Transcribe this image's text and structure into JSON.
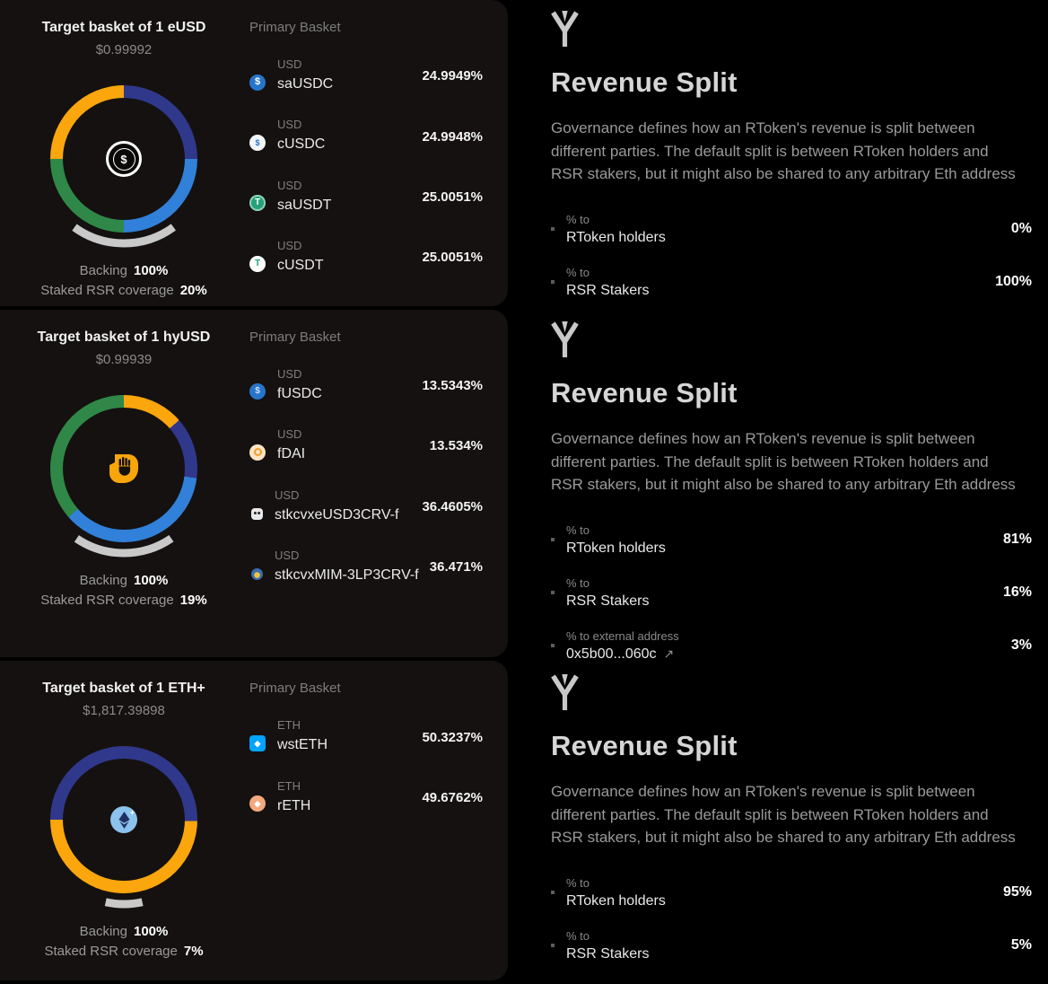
{
  "palette": {
    "card_bg": "#151110",
    "page_bg": "#000000",
    "navy": "#30388c",
    "blue": "#3180da",
    "green": "#2f8847",
    "orange": "#fba60d",
    "gauge": "#c9c9c9"
  },
  "cards": [
    {
      "title": "Target basket of 1 eUSD",
      "price": "$0.99992",
      "primary_basket_label": "Primary Basket",
      "backing_label": "Backing",
      "backing_value": "100%",
      "coverage_label": "Staked RSR coverage",
      "coverage_value": "20%",
      "tokens": [
        {
          "group": "USD",
          "name": "saUSDC",
          "pct": "24.9949%",
          "icon": "sausdc-token-icon"
        },
        {
          "group": "USD",
          "name": "cUSDC",
          "pct": "24.9948%",
          "icon": "cusdc-token-icon"
        },
        {
          "group": "USD",
          "name": "saUSDT",
          "pct": "25.0051%",
          "icon": "sausdt-token-icon"
        },
        {
          "group": "USD",
          "name": "cUSDT",
          "pct": "25.0051%",
          "icon": "cusdt-token-icon"
        }
      ]
    },
    {
      "title": "Target basket of 1 hyUSD",
      "price": "$0.99939",
      "primary_basket_label": "Primary Basket",
      "backing_label": "Backing",
      "backing_value": "100%",
      "coverage_label": "Staked RSR coverage",
      "coverage_value": "19%",
      "tokens": [
        {
          "group": "USD",
          "name": "fUSDC",
          "pct": "13.5343%",
          "icon": "fusdc-token-icon"
        },
        {
          "group": "USD",
          "name": "fDAI",
          "pct": "13.534%",
          "icon": "fdai-token-icon"
        },
        {
          "group": "USD",
          "name": "stkcvxeUSD3CRV-f",
          "pct": "36.4605%",
          "icon": "stkcvx-eusd3crv-token-icon"
        },
        {
          "group": "USD",
          "name": "stkcvxMIM-3LP3CRV-f",
          "pct": "36.471%",
          "icon": "stkcvx-mim3lp-token-icon"
        }
      ]
    },
    {
      "title": "Target basket of 1 ETH+",
      "price": "$1,817.39898",
      "primary_basket_label": "Primary Basket",
      "backing_label": "Backing",
      "backing_value": "100%",
      "coverage_label": "Staked RSR coverage",
      "coverage_value": "7%",
      "tokens": [
        {
          "group": "ETH",
          "name": "wstETH",
          "pct": "50.3237%",
          "icon": "wsteth-token-icon"
        },
        {
          "group": "ETH",
          "name": "rETH",
          "pct": "49.6762%",
          "icon": "reth-token-icon"
        }
      ]
    }
  ],
  "revenue_sections": [
    {
      "logo_icon": "reserve-logo",
      "title": "Revenue Split",
      "description": "Governance defines how an RToken's revenue is split between different parties. The default split is between RToken holders and RSR stakers, but it might also be shared to any arbitrary Eth address",
      "rows": [
        {
          "label": "% to",
          "name": "RToken holders",
          "value": "0%"
        },
        {
          "label": "% to",
          "name": "RSR Stakers",
          "value": "100%"
        }
      ]
    },
    {
      "logo_icon": "reserve-logo",
      "title": "Revenue Split",
      "description": "Governance defines how an RToken's revenue is split between different parties. The default split is between RToken holders and RSR stakers, but it might also be shared to any arbitrary Eth address",
      "rows": [
        {
          "label": "% to",
          "name": "RToken holders",
          "value": "81%"
        },
        {
          "label": "% to",
          "name": "RSR Stakers",
          "value": "16%"
        },
        {
          "label": "% to external address",
          "name": "0x5b00...060c",
          "value": "3%",
          "external": true,
          "link_icon": "arrow-up-right"
        }
      ]
    },
    {
      "logo_icon": "reserve-logo",
      "title": "Revenue Split",
      "description": "Governance defines how an RToken's revenue is split between different parties. The default split is between RToken holders and RSR stakers, but it might also be shared to any arbitrary Eth address",
      "rows": [
        {
          "label": "% to",
          "name": "RToken holders",
          "value": "95%"
        },
        {
          "label": "% to",
          "name": "RSR Stakers",
          "value": "5%"
        }
      ]
    }
  ],
  "chart_data": [
    {
      "type": "pie",
      "variant": "donut",
      "title": "eUSD primary basket",
      "start_angle": 0,
      "segments": [
        {
          "label": "saUSDC",
          "value": 24.9949,
          "color": "#30388c"
        },
        {
          "label": "cUSDC",
          "value": 24.9948,
          "color": "#3180da"
        },
        {
          "label": "saUSDT",
          "value": 25.0051,
          "color": "#2f8847"
        },
        {
          "label": "cUSDT",
          "value": 25.0051,
          "color": "#fba60d"
        }
      ],
      "center_icon": "eusd-logo",
      "gauge": {
        "label": "Staked RSR coverage",
        "value": 20,
        "max": 100,
        "color": "#c9c9c9"
      },
      "backing_pct": 100
    },
    {
      "type": "pie",
      "variant": "donut",
      "title": "hyUSD primary basket",
      "start_angle": 0,
      "segments": [
        {
          "label": "fUSDC",
          "value": 13.5343,
          "color": "#fba60d"
        },
        {
          "label": "fDAI",
          "value": 13.534,
          "color": "#30388c"
        },
        {
          "label": "stkcvxeUSD3CRV-f",
          "value": 36.4605,
          "color": "#3180da"
        },
        {
          "label": "stkcvxMIM-3LP3CRV-f",
          "value": 36.471,
          "color": "#2f8847"
        }
      ],
      "center_icon": "hyusd-logo",
      "gauge": {
        "label": "Staked RSR coverage",
        "value": 19,
        "max": 100,
        "color": "#c9c9c9"
      },
      "backing_pct": 100
    },
    {
      "type": "pie",
      "variant": "donut",
      "title": "ETH+ primary basket",
      "start_angle": 270,
      "segments": [
        {
          "label": "wstETH",
          "value": 50.3237,
          "color": "#30388c"
        },
        {
          "label": "rETH",
          "value": 49.6762,
          "color": "#fba60d"
        }
      ],
      "center_icon": "ethplus-logo",
      "gauge": {
        "label": "Staked RSR coverage",
        "value": 7,
        "max": 100,
        "color": "#c9c9c9"
      },
      "backing_pct": 100
    }
  ]
}
